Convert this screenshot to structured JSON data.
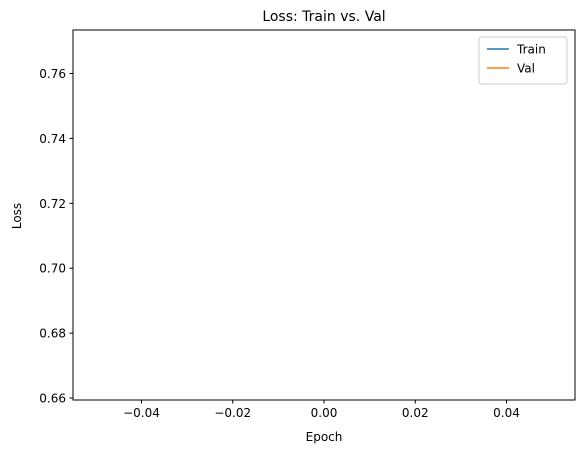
{
  "chart_data": {
    "type": "line",
    "title": "Loss: Train vs. Val",
    "xlabel": "Epoch",
    "ylabel": "Loss",
    "xlim": [
      -0.055,
      0.055
    ],
    "ylim": [
      0.6594,
      0.7734
    ],
    "x_ticks": [
      -0.04,
      -0.02,
      0.0,
      0.02,
      0.04
    ],
    "x_tick_labels": [
      "−0.04",
      "−0.02",
      "0.00",
      "0.02",
      "0.04"
    ],
    "y_ticks": [
      0.66,
      0.68,
      0.7,
      0.72,
      0.74,
      0.76
    ],
    "y_tick_labels": [
      "0.66",
      "0.68",
      "0.70",
      "0.72",
      "0.74",
      "0.76"
    ],
    "grid": false,
    "legend_position": "top-right",
    "series": [
      {
        "name": "Train",
        "color": "#1f77b4",
        "x": [],
        "y": []
      },
      {
        "name": "Val",
        "color": "#ff7f0e",
        "x": [],
        "y": []
      }
    ]
  }
}
